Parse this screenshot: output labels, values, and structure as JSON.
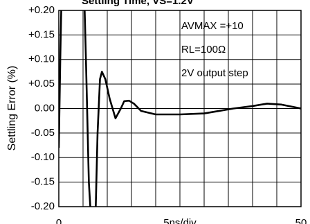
{
  "chart_data": {
    "type": "line",
    "title": "Settling Time, VS=1.2V",
    "x_label": "5ns/div",
    "y_label": "Settling Error (%)",
    "annotations": [
      "AVMAX =+10",
      "RL=100Ω",
      "2V output step"
    ],
    "xlim": [
      0,
      50
    ],
    "xticks": [
      0,
      50
    ],
    "xgrid": [
      5,
      10,
      15,
      20,
      25,
      30,
      35,
      40,
      45
    ],
    "ylim": [
      -0.2,
      0.2
    ],
    "yticks": [
      {
        "value": 0.2,
        "label": "+0.20"
      },
      {
        "value": 0.15,
        "label": "+0.15"
      },
      {
        "value": 0.1,
        "label": "+0.10"
      },
      {
        "value": 0.05,
        "label": "+0.05"
      },
      {
        "value": 0,
        "label": "0.00"
      },
      {
        "value": -0.05,
        "label": "-0.05"
      },
      {
        "value": -0.1,
        "label": "-0.10"
      },
      {
        "value": -0.15,
        "label": "-0.15"
      },
      {
        "value": -0.2,
        "label": "-0.20"
      }
    ],
    "grid": true,
    "series": [
      {
        "color": "#000000",
        "x": [
          0,
          0.3,
          0.6,
          5.2,
          5.6,
          6.2,
          6.8,
          7.5,
          8.0,
          8.5,
          8.9,
          9.6,
          10.5,
          11.7,
          12.8,
          13.5,
          14.5,
          15.5,
          17,
          20,
          25,
          30,
          33,
          36,
          40,
          43,
          46,
          50
        ],
        "values": [
          -0.08,
          0.1,
          0.25,
          0.25,
          0.1,
          -0.15,
          -0.25,
          -0.25,
          -0.05,
          0.06,
          0.075,
          0.06,
          0.02,
          -0.02,
          0.0,
          0.015,
          0.016,
          0.01,
          -0.005,
          -0.012,
          -0.012,
          -0.01,
          -0.005,
          0.0,
          0.005,
          0.01,
          0.008,
          0.0
        ]
      }
    ]
  }
}
